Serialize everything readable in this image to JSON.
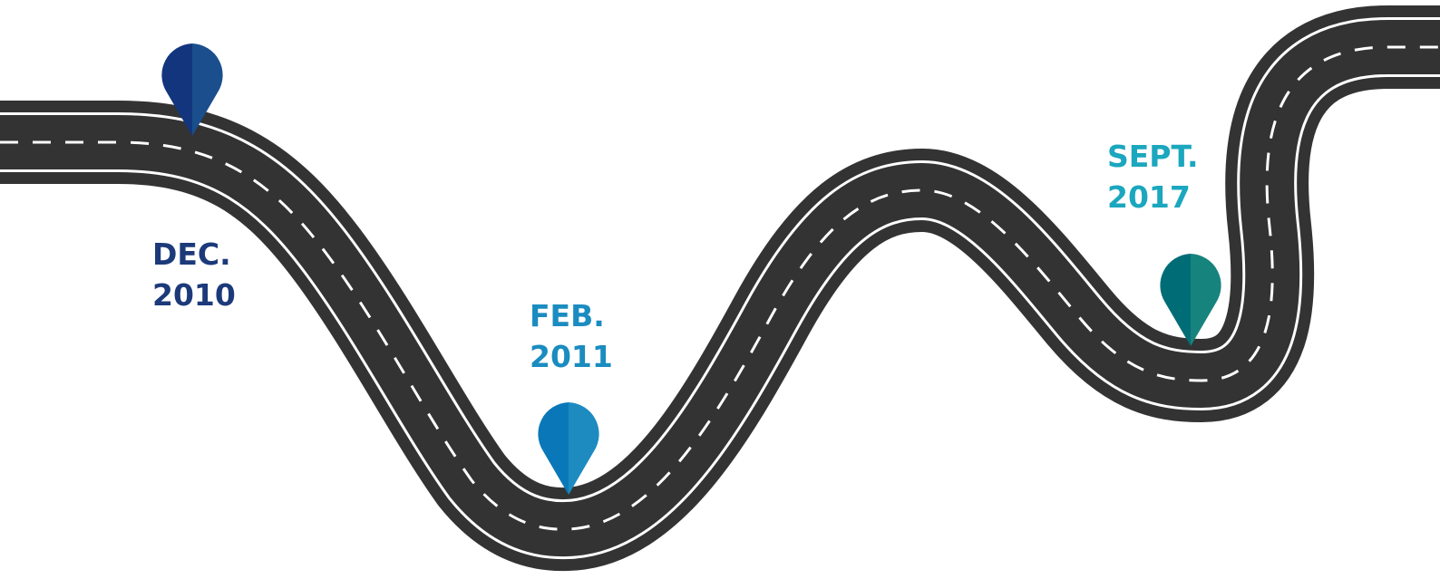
{
  "milestones": [
    {
      "month": "DEC.",
      "year": "2010"
    },
    {
      "month": "FEB.",
      "year": "2011"
    },
    {
      "month": "SEPT.",
      "year": "2017"
    }
  ]
}
